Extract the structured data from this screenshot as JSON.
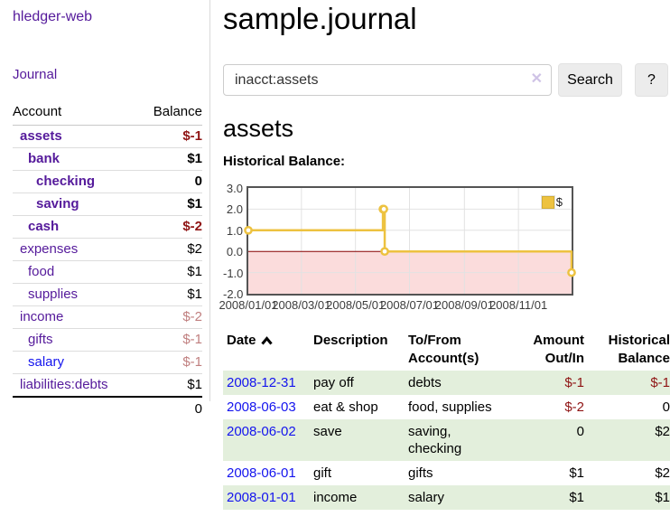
{
  "app": {
    "title": "hledger-web"
  },
  "palette": {
    "purple_link": "#551a9b",
    "blue_link": "#1414ee",
    "negative_strong": "#8f1414",
    "negative_soft": "#c07f7f",
    "row_highlight_green": "#e3efdc"
  },
  "sidebar": {
    "journal_label": "Journal",
    "accounts": {
      "header_account": "Account",
      "header_balance": "Balance",
      "rows": [
        {
          "name": "assets",
          "balance": "$-1",
          "depth": 1,
          "bold": true,
          "link_color": "purple",
          "balance_tone": "neg-strong"
        },
        {
          "name": "bank",
          "balance": "$1",
          "depth": 2,
          "bold": true,
          "link_color": "purple",
          "balance_tone": "default"
        },
        {
          "name": "checking",
          "balance": "0",
          "depth": 3,
          "bold": true,
          "link_color": "purple",
          "balance_tone": "default"
        },
        {
          "name": "saving",
          "balance": "$1",
          "depth": 3,
          "bold": true,
          "link_color": "purple",
          "balance_tone": "default"
        },
        {
          "name": "cash",
          "balance": "$-2",
          "depth": 2,
          "bold": true,
          "link_color": "purple",
          "balance_tone": "neg-strong"
        },
        {
          "name": "expenses",
          "balance": "$2",
          "depth": 1,
          "bold": false,
          "link_color": "purple",
          "balance_tone": "default"
        },
        {
          "name": "food",
          "balance": "$1",
          "depth": 2,
          "bold": false,
          "link_color": "purple",
          "balance_tone": "default"
        },
        {
          "name": "supplies",
          "balance": "$1",
          "depth": 2,
          "bold": false,
          "link_color": "purple",
          "balance_tone": "default"
        },
        {
          "name": "income",
          "balance": "$-2",
          "depth": 1,
          "bold": false,
          "link_color": "purple",
          "balance_tone": "neg-soft"
        },
        {
          "name": "gifts",
          "balance": "$-1",
          "depth": 2,
          "bold": false,
          "link_color": "purple",
          "balance_tone": "neg-soft"
        },
        {
          "name": "salary",
          "balance": "$-1",
          "depth": 2,
          "bold": false,
          "link_color": "blue",
          "balance_tone": "neg-soft"
        },
        {
          "name": "liabilities:debts",
          "balance": "$1",
          "depth": 1,
          "bold": false,
          "link_color": "purple",
          "balance_tone": "default"
        }
      ],
      "total": "0"
    }
  },
  "main": {
    "title": "sample.journal",
    "search": {
      "value": "inacct:assets",
      "clear_icon": "✕",
      "search_button": "Search",
      "help_button": "?"
    },
    "account_heading": "assets",
    "chart_title": "Historical Balance:"
  },
  "chart_data": {
    "type": "line",
    "step": true,
    "title": "Historical Balance",
    "legend": {
      "label": "$",
      "position": "top-right"
    },
    "xlim_days": [
      0,
      365
    ],
    "ylim": [
      -2,
      3
    ],
    "grid": true,
    "y_ticks": [
      "3.0",
      "2.0",
      "1.0",
      "0.0",
      "-1.0",
      "-2.0"
    ],
    "x_ticks": [
      {
        "day": 0,
        "label": "2008/01/01"
      },
      {
        "day": 60,
        "label": "2008/03/01"
      },
      {
        "day": 121,
        "label": "2008/05/01"
      },
      {
        "day": 182,
        "label": "2008/07/01"
      },
      {
        "day": 244,
        "label": "2008/09/01"
      },
      {
        "day": 305,
        "label": "2008/11/01"
      }
    ],
    "series": [
      {
        "name": "$",
        "color": "#edc240",
        "points": [
          {
            "date": "2008-01-01",
            "day": 0,
            "value": 1
          },
          {
            "date": "2008-06-01",
            "day": 152,
            "value": 2
          },
          {
            "date": "2008-06-02",
            "day": 153,
            "value": 2
          },
          {
            "date": "2008-06-03",
            "day": 154,
            "value": 0
          },
          {
            "date": "2008-12-31",
            "day": 365,
            "value": -1
          }
        ]
      }
    ],
    "negative_region_color": "#fbdcdc",
    "zero_line_color": "#8b0000",
    "border_color": "#545454",
    "gridline_color": "#e2e2e2"
  },
  "register": {
    "headers": {
      "date": "Date",
      "description": "Description",
      "accounts": "To/From Account(s)",
      "amount": "Amount Out/In",
      "balance": "Historical Balance"
    },
    "rows": [
      {
        "date": "2008-12-31",
        "description": "pay off",
        "accounts": "debts",
        "amount": "$-1",
        "balance": "$-1",
        "amount_tone": "neg",
        "balance_tone": "neg",
        "highlighted": true
      },
      {
        "date": "2008-06-03",
        "description": "eat & shop",
        "accounts": "food, supplies",
        "amount": "$-2",
        "balance": "0",
        "amount_tone": "neg",
        "balance_tone": "default",
        "highlighted": false
      },
      {
        "date": "2008-06-02",
        "description": "save",
        "accounts": "saving, checking",
        "amount": "0",
        "balance": "$2",
        "amount_tone": "default",
        "balance_tone": "default",
        "highlighted": true
      },
      {
        "date": "2008-06-01",
        "description": "gift",
        "accounts": "gifts",
        "amount": "$1",
        "balance": "$2",
        "amount_tone": "default",
        "balance_tone": "default",
        "highlighted": false
      },
      {
        "date": "2008-01-01",
        "description": "income",
        "accounts": "salary",
        "amount": "$1",
        "balance": "$1",
        "amount_tone": "default",
        "balance_tone": "default",
        "highlighted": true
      }
    ]
  }
}
